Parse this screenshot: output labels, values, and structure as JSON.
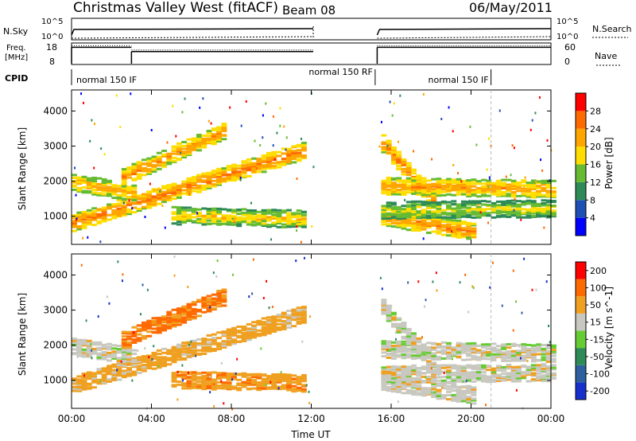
{
  "header": {
    "title": "Christmas Valley West (fitACF)",
    "beam": "Beam 08",
    "date": "06/May/2011"
  },
  "status": {
    "nsky_label": "N.Sky",
    "nsky_ticks": [
      "10^5",
      "10^0"
    ],
    "nsearch_label": "N.Search",
    "nsearch_ticks": [
      "10^5",
      "10^0"
    ],
    "freq_label": [
      "Freq.",
      "[MHz]"
    ],
    "freq_ticks": [
      "18",
      "8"
    ],
    "nave_label": "Nave",
    "nave_ticks": [
      "60",
      "0"
    ],
    "cpid_label": "CPID",
    "cpid_entries": [
      {
        "text": "normal 150 IF",
        "start_h": 0
      },
      {
        "text": "normal 150 RF",
        "start_h": 15.2
      },
      {
        "text": "normal 150 IF",
        "start_h": 21.0
      }
    ],
    "gap_h": [
      12.1,
      15.3
    ],
    "freq_mhz": [
      {
        "from": 0,
        "to": 3.0,
        "value": 16
      },
      {
        "from": 3.0,
        "to": 12.1,
        "value": 14
      },
      {
        "from": 15.3,
        "to": 24,
        "value": 16
      }
    ]
  },
  "panels": {
    "ylabel": "Slant Range [km]",
    "yticks": [
      "1000",
      "2000",
      "3000",
      "4000"
    ],
    "xlabel": "Time UT",
    "xticks": [
      "00:00",
      "04:00",
      "08:00",
      "12:00",
      "16:00",
      "20:00",
      "00:00"
    ]
  },
  "colorbars": {
    "power": {
      "label": "Power [dB]",
      "ticks": [
        "4",
        "8",
        "12",
        "16",
        "20",
        "24",
        "28"
      ],
      "colors": [
        "#0000ff",
        "#1e4fb5",
        "#2e8b57",
        "#66bb33",
        "#ffdd00",
        "#ffa500",
        "#ff6a00",
        "#ff0000"
      ]
    },
    "velocity": {
      "label": "Velocity [m s^-1]",
      "ticks": [
        "200",
        "100",
        "50",
        "15",
        "-15",
        "-50",
        "-100",
        "-200"
      ],
      "colors": [
        "#1530cc",
        "#2e5f9e",
        "#2e8b57",
        "#66cc33",
        "#c8c8c0",
        "#f0a020",
        "#ff6a00",
        "#ff0000"
      ]
    }
  },
  "chart_data": [
    {
      "type": "heatmap",
      "title": "Power",
      "xlabel": "Time UT",
      "ylabel": "Slant Range [km]",
      "xlim_hours": [
        0,
        24
      ],
      "ylim_km": [
        200,
        4600
      ],
      "gaps_hours": [
        [
          12.1,
          15.3
        ]
      ],
      "echo_bands": [
        {
          "t0": 0.0,
          "r0": 850,
          "t1": 11.5,
          "r1": 2900,
          "power_db": 27
        },
        {
          "t0": 2.5,
          "r0": 2150,
          "t1": 7.5,
          "r1": 3450,
          "power_db": 26
        },
        {
          "t0": 0.0,
          "r0": 2000,
          "t1": 3.0,
          "r1": 1700,
          "power_db": 24
        },
        {
          "t0": 5.0,
          "r0": 1050,
          "t1": 11.5,
          "r1": 950,
          "power_db": 22
        },
        {
          "t0": 15.5,
          "r0": 3100,
          "t1": 18.0,
          "r1": 1500,
          "power_db": 27
        },
        {
          "t0": 15.5,
          "r0": 1900,
          "t1": 24.0,
          "r1": 1800,
          "power_db": 25
        },
        {
          "t0": 15.5,
          "r0": 1000,
          "t1": 20.0,
          "r1": 600,
          "power_db": 26
        },
        {
          "t0": 15.5,
          "r0": 1200,
          "t1": 24.0,
          "r1": 1250,
          "power_db": 20
        }
      ]
    },
    {
      "type": "heatmap",
      "title": "Velocity",
      "xlabel": "Time UT",
      "ylabel": "Slant Range [km]",
      "xlim_hours": [
        0,
        24
      ],
      "ylim_km": [
        200,
        4600
      ],
      "gaps_hours": [
        [
          12.1,
          15.3
        ]
      ],
      "echo_bands": [
        {
          "t0": 0.0,
          "r0": 900,
          "t1": 11.5,
          "r1": 2900,
          "velocity_ms": -30
        },
        {
          "t0": 2.5,
          "r0": 2200,
          "t1": 7.5,
          "r1": 3400,
          "velocity_ms": -60
        },
        {
          "t0": 0.0,
          "r0": 2000,
          "t1": 3.0,
          "r1": 1700,
          "velocity_ms": 0
        },
        {
          "t0": 5.0,
          "r0": 1050,
          "t1": 11.5,
          "r1": 950,
          "velocity_ms": -40
        },
        {
          "t0": 15.5,
          "r0": 3100,
          "t1": 18.0,
          "r1": 1500,
          "velocity_ms": 0
        },
        {
          "t0": 15.5,
          "r0": 1900,
          "t1": 24.0,
          "r1": 1800,
          "velocity_ms": 0
        },
        {
          "t0": 15.5,
          "r0": 1000,
          "t1": 20.0,
          "r1": 600,
          "velocity_ms": 0
        },
        {
          "t0": 15.5,
          "r0": 1200,
          "t1": 24.0,
          "r1": 1250,
          "velocity_ms": 0
        }
      ]
    }
  ]
}
